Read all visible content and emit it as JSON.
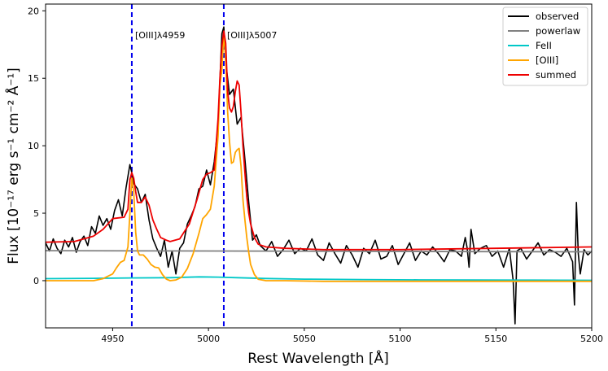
{
  "chart_data": {
    "type": "line",
    "xlabel": "Rest Wavelength [Å]",
    "ylabel": "Flux [10⁻¹⁷ erg s⁻¹ cm⁻² Å⁻¹]",
    "xlim": [
      4915,
      5200
    ],
    "ylim": [
      -3.5,
      20.5
    ],
    "xticks": [
      4950,
      5000,
      5050,
      5100,
      5150,
      5200
    ],
    "yticks": [
      0,
      5,
      10,
      15,
      20
    ],
    "grid": false,
    "legend_position": "top-right",
    "vlines": [
      {
        "x": 4960,
        "label": "[OIII]λ4959",
        "color": "#0000ee",
        "style": "dashed"
      },
      {
        "x": 5008,
        "label": "[OIII]λ5007",
        "color": "#0000ee",
        "style": "dashed"
      }
    ],
    "series": [
      {
        "name": "observed",
        "color": "#000000",
        "x": [
          4915,
          4917,
          4919,
          4921,
          4923,
          4925,
          4927,
          4929,
          4931,
          4933,
          4935,
          4937,
          4939,
          4941,
          4943,
          4945,
          4947,
          4949,
          4951,
          4953,
          4955,
          4957,
          4959,
          4960,
          4961,
          4963,
          4965,
          4967,
          4969,
          4971,
          4973,
          4975,
          4977,
          4979,
          4981,
          4983,
          4985,
          4987,
          4989,
          4991,
          4993,
          4995,
          4997,
          4999,
          5001,
          5003,
          5005,
          5007,
          5008,
          5009,
          5011,
          5013,
          5015,
          5017,
          5019,
          5021,
          5023,
          5025,
          5027,
          5030,
          5033,
          5036,
          5039,
          5042,
          5045,
          5048,
          5051,
          5054,
          5057,
          5060,
          5063,
          5066,
          5069,
          5072,
          5075,
          5078,
          5081,
          5084,
          5087,
          5090,
          5093,
          5096,
          5099,
          5102,
          5105,
          5108,
          5111,
          5114,
          5117,
          5120,
          5123,
          5126,
          5129,
          5132,
          5134,
          5135,
          5136,
          5137,
          5139,
          5142,
          5145,
          5148,
          5151,
          5154,
          5157,
          5159,
          5160,
          5161,
          5163,
          5166,
          5169,
          5172,
          5175,
          5178,
          5181,
          5184,
          5187,
          5190,
          5191,
          5192,
          5193,
          5194,
          5196,
          5198,
          5200
        ],
        "values": [
          2.8,
          2.2,
          3.1,
          2.4,
          2.0,
          3.0,
          2.5,
          3.2,
          2.1,
          2.9,
          3.3,
          2.6,
          4.0,
          3.5,
          4.8,
          4.1,
          4.6,
          3.8,
          5.2,
          6.0,
          4.8,
          6.9,
          8.6,
          8.0,
          7.2,
          6.8,
          5.8,
          6.4,
          4.5,
          3.1,
          2.4,
          1.8,
          3.0,
          1.0,
          2.2,
          0.5,
          2.4,
          2.8,
          4.2,
          4.8,
          5.5,
          6.8,
          7.0,
          8.2,
          7.1,
          8.8,
          11.5,
          18.3,
          18.8,
          16.2,
          13.8,
          14.2,
          11.6,
          12.1,
          9.0,
          5.8,
          3.0,
          3.4,
          2.6,
          2.2,
          2.9,
          1.8,
          2.3,
          3.0,
          2.0,
          2.4,
          2.2,
          3.1,
          1.9,
          1.5,
          2.8,
          2.0,
          1.3,
          2.6,
          1.9,
          1.0,
          2.4,
          2.0,
          3.0,
          1.6,
          1.8,
          2.6,
          1.2,
          2.0,
          2.8,
          1.5,
          2.2,
          1.9,
          2.5,
          2.0,
          1.4,
          2.3,
          2.2,
          1.8,
          3.2,
          2.4,
          1.0,
          3.8,
          2.0,
          2.4,
          2.6,
          1.8,
          2.2,
          1.0,
          2.4,
          0.0,
          -3.2,
          2.2,
          2.4,
          1.6,
          2.2,
          2.8,
          1.9,
          2.3,
          2.1,
          1.8,
          2.4,
          1.4,
          -1.8,
          5.8,
          2.0,
          0.5,
          2.3,
          1.9,
          2.2
        ]
      },
      {
        "name": "powerlaw",
        "color": "#808080",
        "x": [
          4915,
          5200
        ],
        "values": [
          2.22,
          2.14
        ]
      },
      {
        "name": "FeII",
        "color": "#00c8c8",
        "x": [
          4915,
          4940,
          4960,
          4980,
          4995,
          5005,
          5015,
          5030,
          5050,
          5080,
          5110,
          5140,
          5170,
          5200
        ],
        "values": [
          0.15,
          0.17,
          0.2,
          0.22,
          0.28,
          0.26,
          0.22,
          0.16,
          0.11,
          0.08,
          0.06,
          0.05,
          0.04,
          0.03
        ]
      },
      {
        "name": "[OIII]",
        "color": "#ffa500",
        "x": [
          4915,
          4940,
          4945,
          4950,
          4952,
          4954,
          4956,
          4958,
          4959,
          4960,
          4961,
          4962,
          4963,
          4964,
          4966,
          4968,
          4970,
          4972,
          4974,
          4976,
          4978,
          4980,
          4983,
          4986,
          4989,
          4992,
          4995,
          4997,
          4999,
          5001,
          5003,
          5005,
          5006,
          5007,
          5008,
          5009,
          5010,
          5011,
          5012,
          5013,
          5014,
          5015,
          5016,
          5017,
          5018,
          5019,
          5020,
          5021,
          5022,
          5024,
          5026,
          5030,
          5040,
          5060,
          5100,
          5150,
          5200
        ],
        "values": [
          0.0,
          0.0,
          0.15,
          0.5,
          0.95,
          1.35,
          1.5,
          2.5,
          5.0,
          7.6,
          6.6,
          3.6,
          2.2,
          1.9,
          1.9,
          1.6,
          1.2,
          1.0,
          0.95,
          0.45,
          0.12,
          0.0,
          0.05,
          0.25,
          0.9,
          2.0,
          3.5,
          4.6,
          4.9,
          5.3,
          7.0,
          10.7,
          14.5,
          15.6,
          18.3,
          16.4,
          12.5,
          10.3,
          8.7,
          8.8,
          9.5,
          9.7,
          9.8,
          8.5,
          6.0,
          4.5,
          3.2,
          2.1,
          1.2,
          0.45,
          0.1,
          0.0,
          0.0,
          -0.05,
          -0.05,
          -0.05,
          -0.05
        ]
      },
      {
        "name": "summed",
        "color": "#ee0000",
        "x": [
          4915,
          4930,
          4940,
          4945,
          4950,
          4953,
          4956,
          4958,
          4959,
          4960,
          4961,
          4962,
          4963,
          4965,
          4967,
          4969,
          4971,
          4973,
          4975,
          4978,
          4980,
          4985,
          4990,
          4994,
          4997,
          4999,
          5001,
          5003,
          5005,
          5006,
          5007,
          5008,
          5009,
          5010,
          5011,
          5012,
          5013,
          5014,
          5015,
          5016,
          5017,
          5018,
          5019,
          5020,
          5021,
          5022,
          5024,
          5026,
          5030,
          5040,
          5060,
          5100,
          5150,
          5200
        ],
        "values": [
          2.85,
          2.9,
          3.3,
          3.8,
          4.6,
          4.65,
          4.7,
          5.3,
          7.5,
          8.0,
          7.6,
          6.6,
          5.8,
          5.8,
          6.2,
          5.6,
          4.5,
          3.8,
          3.2,
          3.0,
          2.9,
          3.1,
          4.2,
          6.0,
          7.5,
          7.9,
          8.0,
          8.2,
          12.0,
          15.0,
          17.4,
          18.5,
          17.6,
          14.0,
          12.8,
          12.5,
          12.9,
          14.0,
          14.8,
          14.5,
          12.5,
          10.0,
          8.0,
          6.2,
          5.0,
          4.2,
          3.2,
          2.7,
          2.5,
          2.4,
          2.3,
          2.3,
          2.4,
          2.5
        ]
      }
    ]
  }
}
